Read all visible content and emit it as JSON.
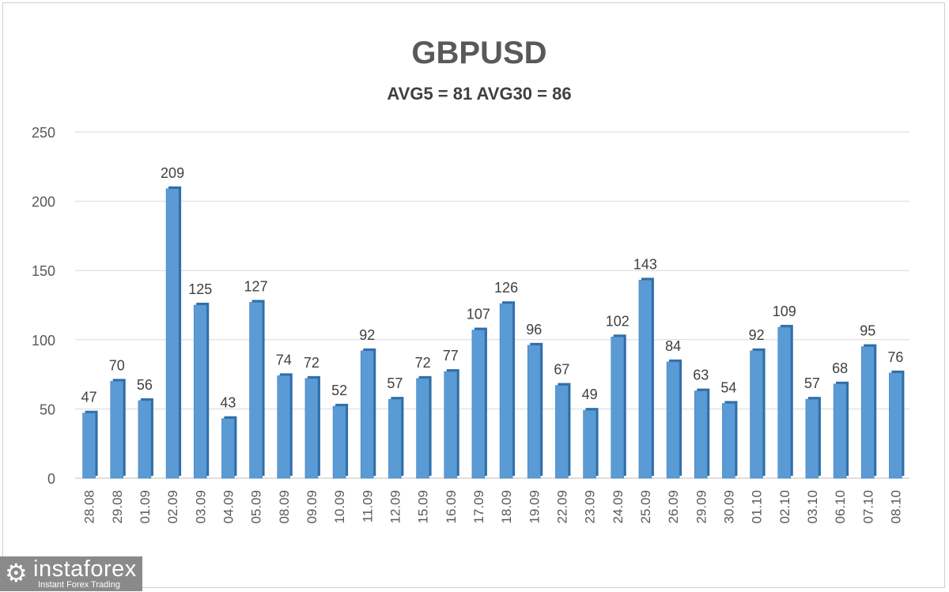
{
  "chart_data": {
    "type": "bar",
    "title": "GBPUSD",
    "subtitle": "AVG5 = 81 AVG30 = 86",
    "categories": [
      "28.08",
      "29.08",
      "01.09",
      "02.09",
      "03.09",
      "04.09",
      "05.09",
      "08.09",
      "09.09",
      "10.09",
      "11.09",
      "12.09",
      "15.09",
      "16.09",
      "17.09",
      "18.09",
      "19.09",
      "22.09",
      "23.09",
      "24.09",
      "25.09",
      "26.09",
      "29.09",
      "30.09",
      "01.10",
      "02.10",
      "03.10",
      "06.10",
      "07.10",
      "08.10"
    ],
    "values": [
      47,
      70,
      56,
      209,
      125,
      43,
      127,
      74,
      72,
      52,
      92,
      57,
      72,
      77,
      107,
      126,
      96,
      67,
      49,
      102,
      143,
      84,
      63,
      54,
      92,
      109,
      57,
      68,
      95,
      76
    ],
    "ylim": [
      0,
      250
    ],
    "yticks": [
      0,
      50,
      100,
      150,
      200,
      250
    ],
    "grid": true,
    "bar_color": "#5b9bd5",
    "data_labels": true
  },
  "watermark": {
    "brand": "instaforex",
    "tagline": "Instant Forex Trading",
    "icon": "gear-person-icon"
  }
}
